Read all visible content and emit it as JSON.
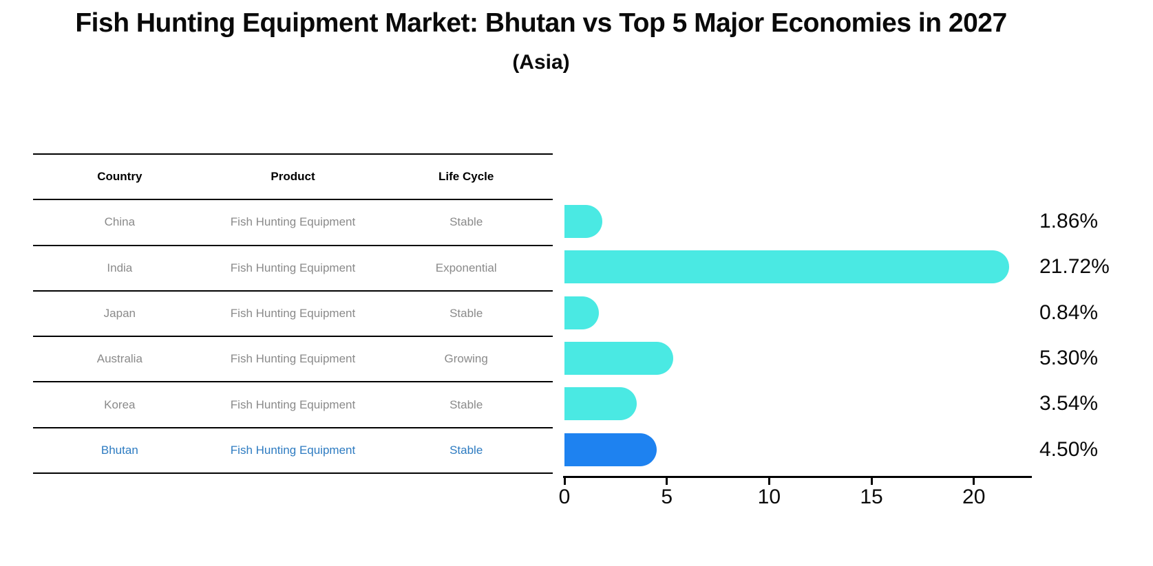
{
  "title": "Fish Hunting Equipment Market: Bhutan vs Top 5 Major Economies in 2027",
  "subtitle": "(Asia)",
  "table": {
    "headers": [
      "Country",
      "Product",
      "Life Cycle"
    ],
    "rows": [
      {
        "country": "China",
        "product": "Fish Hunting Equipment",
        "life_cycle": "Stable",
        "highlight": false
      },
      {
        "country": "India",
        "product": "Fish Hunting Equipment",
        "life_cycle": "Exponential",
        "highlight": false
      },
      {
        "country": "Japan",
        "product": "Fish Hunting Equipment",
        "life_cycle": "Stable",
        "highlight": false
      },
      {
        "country": "Australia",
        "product": "Fish Hunting Equipment",
        "life_cycle": "Growing",
        "highlight": false
      },
      {
        "country": "Korea",
        "product": "Fish Hunting Equipment",
        "life_cycle": "Stable",
        "highlight": false
      },
      {
        "country": "Bhutan",
        "product": "Fish Hunting Equipment",
        "life_cycle": "Stable",
        "highlight": true
      }
    ]
  },
  "chart_data": {
    "type": "bar",
    "orientation": "horizontal",
    "categories": [
      "China",
      "India",
      "Japan",
      "Australia",
      "Korea",
      "Bhutan"
    ],
    "values": [
      1.86,
      21.72,
      0.84,
      5.3,
      3.54,
      4.5
    ],
    "value_labels": [
      "1.86%",
      "21.72%",
      "0.84%",
      "5.30%",
      "3.54%",
      "4.50%"
    ],
    "xlim": [
      0,
      22.8
    ],
    "x_ticks": [
      0,
      5,
      10,
      15,
      20
    ],
    "grid": false,
    "legend": null,
    "bar_color": "#4AE9E3",
    "highlight_color": "#1E82F0",
    "highlight_index": 5,
    "highlight_text_color": "#2d7bc1",
    "row_text_color": "#8a8a8a"
  }
}
